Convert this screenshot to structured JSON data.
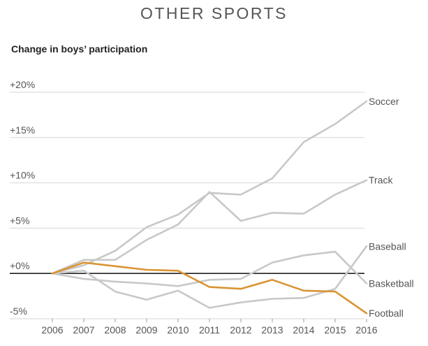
{
  "chart_data": {
    "type": "line",
    "title": "OTHER SPORTS",
    "subtitle": "Change in boys’ participation",
    "x": [
      2006,
      2007,
      2008,
      2009,
      2010,
      2011,
      2012,
      2013,
      2014,
      2015,
      2016
    ],
    "x_tick_labels": [
      "2006",
      "2007",
      "2008",
      "2009",
      "2010",
      "2011",
      "2012",
      "2013",
      "2014",
      "2015",
      "2016"
    ],
    "ylim": [
      -5,
      20
    ],
    "y_ticks": [
      -5,
      0,
      5,
      10,
      15,
      20
    ],
    "y_tick_labels": [
      "-5%",
      "+0%",
      "+5%",
      "+10%",
      "+15%",
      "+20%"
    ],
    "grid": true,
    "series": [
      {
        "name": "Soccer",
        "color": "#c8c8c8",
        "highlight": false,
        "values": [
          0,
          0.9,
          2.5,
          5.1,
          6.5,
          8.9,
          8.7,
          10.5,
          14.5,
          16.5,
          19.0
        ]
      },
      {
        "name": "Track",
        "color": "#c8c8c8",
        "highlight": false,
        "values": [
          0,
          1.5,
          1.5,
          3.7,
          5.4,
          9.0,
          5.8,
          6.7,
          6.6,
          8.7,
          10.3
        ]
      },
      {
        "name": "Baseball",
        "color": "#c8c8c8",
        "highlight": false,
        "values": [
          0,
          0.3,
          -2.0,
          -2.9,
          -1.9,
          -3.8,
          -3.2,
          -2.8,
          -2.7,
          -1.7,
          3.0
        ]
      },
      {
        "name": "Basketball",
        "color": "#c8c8c8",
        "highlight": false,
        "values": [
          0,
          -0.6,
          -0.9,
          -1.1,
          -1.4,
          -0.7,
          -0.6,
          1.2,
          2.0,
          2.4,
          -1.1
        ]
      },
      {
        "name": "Football",
        "color": "#d99433",
        "highlight": true,
        "values": [
          0,
          1.2,
          0.8,
          0.4,
          0.3,
          -1.5,
          -1.7,
          -0.7,
          -1.9,
          -2.0,
          -4.4
        ]
      }
    ]
  }
}
